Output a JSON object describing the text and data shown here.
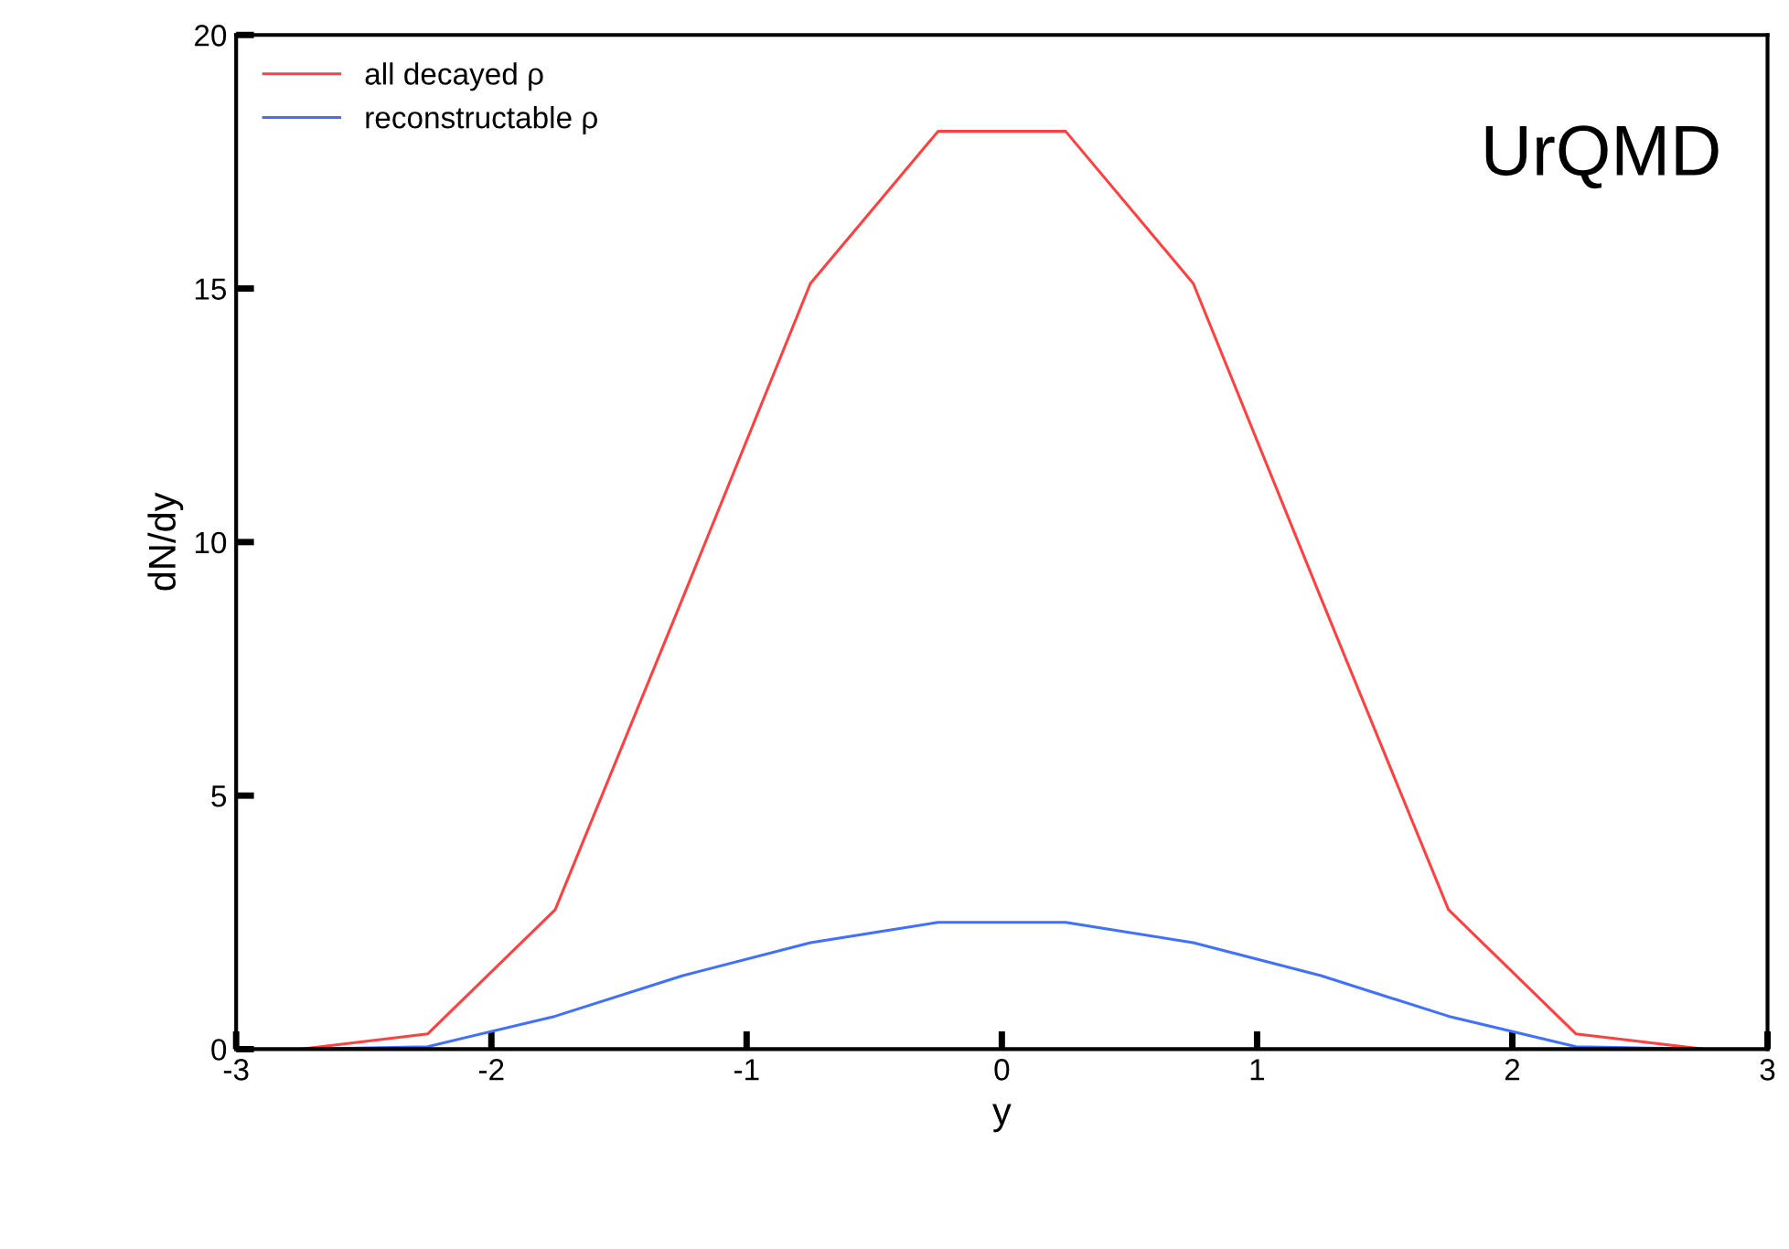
{
  "chart_data": {
    "type": "line",
    "xlabel": "y",
    "ylabel": "dN/dy",
    "x": [
      -2.75,
      -2.25,
      -1.75,
      -1.25,
      -0.75,
      -0.25,
      0.25,
      0.75,
      1.25,
      1.75,
      2.25,
      2.75
    ],
    "series": [
      {
        "name": "all decayed ρ",
        "color": "#ff4040",
        "values": [
          0,
          0.3,
          2.75,
          8.9,
          15.1,
          18.1,
          18.1,
          15.1,
          8.9,
          2.75,
          0.3,
          0
        ]
      },
      {
        "name": "reconstructable ρ",
        "color": "#4070ff",
        "values": [
          0,
          0.05,
          0.65,
          1.45,
          2.1,
          2.5,
          2.5,
          2.1,
          1.45,
          0.65,
          0.05,
          0
        ]
      }
    ],
    "xlim": [
      -3,
      3
    ],
    "xticks": [
      -3,
      -2,
      -1,
      0,
      1,
      2,
      3
    ],
    "ylim": [
      0,
      20
    ],
    "yticks": [
      0,
      5,
      10,
      15,
      20
    ],
    "annotations": [
      {
        "text": "UrQMD"
      }
    ],
    "legend": "top left",
    "grid": false,
    "marker": "none",
    "line_style": "solid"
  }
}
